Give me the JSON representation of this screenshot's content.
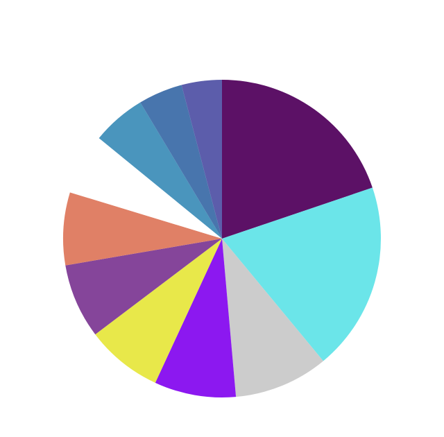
{
  "chart_data": {
    "type": "pie",
    "values": [
      19.8,
      19.2,
      9.6,
      8.3,
      7.8,
      7.6,
      7.4,
      6.2,
      5.5,
      4.5,
      4.1
    ],
    "colors": [
      "#5c1166",
      "#6be5e9",
      "#cccccc",
      "#8c18f0",
      "#e8e84a",
      "#85459a",
      "#e08066",
      "#ffffff",
      "#4a95bd",
      "#4875ad",
      "#5c5dab"
    ]
  }
}
